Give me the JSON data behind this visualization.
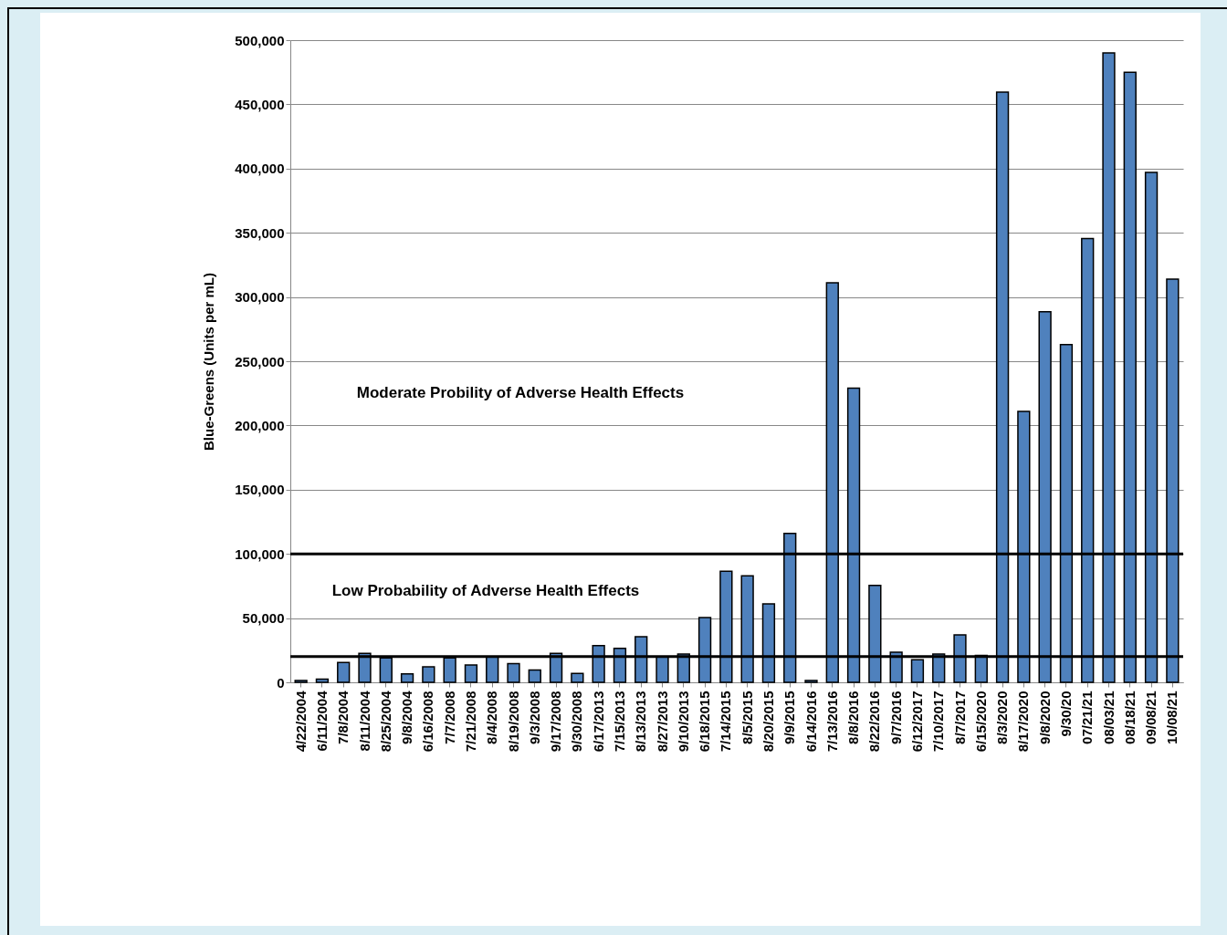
{
  "chart_data": {
    "type": "bar",
    "ylabel": "Blue-Greens (Units per mL)",
    "categories": [
      "4/22/2004",
      "6/11/2004",
      "7/8/2004",
      "8/11/2004",
      "8/25/2004",
      "9/8/2004",
      "6/16/2008",
      "7/7/2008",
      "7/21/2008",
      "8/4/2008",
      "8/19/2008",
      "9/3/2008",
      "9/17/2008",
      "9/30/2008",
      "6/17/2013",
      "7/15/2013",
      "8/13/2013",
      "8/27/2013",
      "9/10/2013",
      "6/18/2015",
      "7/14/2015",
      "8/5/2015",
      "8/20/2015",
      "9/9/2015",
      "6/14/2016",
      "7/13/2016",
      "8/8/2016",
      "8/22/2016",
      "9/7/2016",
      "6/12/2017",
      "7/10/2017",
      "8/7/2017",
      "6/15/2020",
      "8/3/2020",
      "8/17/2020",
      "9/8/2020",
      "9/30/20",
      "07/21/21",
      "08/03/21",
      "08/18/21",
      "09/08/21",
      "10/08/21"
    ],
    "values": [
      1500,
      2500,
      15500,
      22500,
      19000,
      6500,
      12000,
      19000,
      13500,
      20000,
      14500,
      9500,
      22500,
      7000,
      28500,
      26500,
      35500,
      20000,
      22000,
      50500,
      86500,
      83000,
      61000,
      116000,
      1500,
      311000,
      229000,
      75500,
      23500,
      17500,
      22000,
      37000,
      21000,
      459500,
      211000,
      288500,
      263000,
      345500,
      490000,
      475000,
      397000,
      314000
    ],
    "color": "#4f81bd",
    "ylim": [
      0,
      500000
    ],
    "yticks": [
      0,
      {
        "value": 50000,
        "label": "50,000"
      },
      {
        "value": 100000,
        "label": "100,000"
      },
      {
        "value": 150000,
        "label": "150,000"
      },
      {
        "value": 200000,
        "label": "200,000"
      },
      {
        "value": 250000,
        "label": "250,000"
      },
      {
        "value": 300000,
        "label": "300,000"
      },
      {
        "value": 350000,
        "label": "350,000"
      },
      {
        "value": 400000,
        "label": "400,000"
      },
      {
        "value": 450000,
        "label": "450,000"
      },
      {
        "value": 500000,
        "label": "500,000"
      }
    ],
    "grid": "y",
    "ref_lines": [
      {
        "axis": "y",
        "value": 100000,
        "color": "#000000"
      },
      {
        "axis": "y",
        "value": 20000,
        "color": "#000000"
      }
    ],
    "annotations": [
      "Moderate Probility of Adverse Health Effects",
      "Low Probability of Adverse Health Effects"
    ]
  }
}
